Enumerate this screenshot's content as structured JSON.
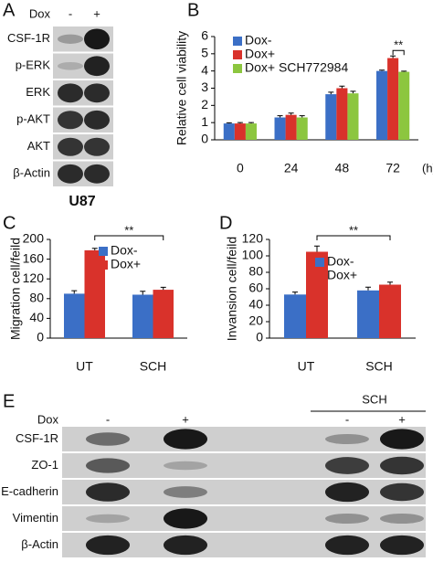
{
  "blot_a": {
    "panel_label": "A",
    "treatment_label": "Dox",
    "lanes": [
      "-",
      "+"
    ],
    "rows": [
      "CSF-1R",
      "p-ERK",
      "ERK",
      "p-AKT",
      "AKT",
      "β-Actin"
    ],
    "cell_line": "U87"
  },
  "chart_data": [
    {
      "type": "bar",
      "panel_label": "B",
      "ylabel": "Relative cell viability",
      "xlabel": "(h)",
      "categories": [
        "0",
        "24",
        "48",
        "72"
      ],
      "ylim": [
        0,
        6
      ],
      "yticks": [
        0,
        1,
        2,
        3,
        4,
        5,
        6
      ],
      "annotation": "**",
      "series": [
        {
          "name": "Dox-",
          "color": "#3b6fc6",
          "values": [
            0.95,
            1.3,
            2.65,
            4.0
          ],
          "errors": [
            0.04,
            0.1,
            0.12,
            0.05
          ]
        },
        {
          "name": "Dox+",
          "color": "#d9322b",
          "values": [
            0.95,
            1.45,
            3.0,
            4.75
          ],
          "errors": [
            0.05,
            0.1,
            0.12,
            0.12
          ]
        },
        {
          "name": "Dox+ SCH772984",
          "color": "#8cc63f",
          "values": [
            0.95,
            1.3,
            2.7,
            3.95
          ],
          "errors": [
            0.05,
            0.1,
            0.12,
            0.04
          ]
        }
      ]
    },
    {
      "type": "bar",
      "panel_label": "C",
      "ylabel": "Migration cell/feild",
      "categories": [
        "UT",
        "SCH"
      ],
      "ylim": [
        0,
        200
      ],
      "yticks": [
        0,
        40,
        80,
        120,
        160,
        200
      ],
      "annotation": "**",
      "series": [
        {
          "name": "Dox-",
          "color": "#3b6fc6",
          "values": [
            90,
            88
          ],
          "errors": [
            6,
            7
          ]
        },
        {
          "name": "Dox+",
          "color": "#d9322b",
          "values": [
            178,
            98
          ],
          "errors": [
            4,
            5
          ]
        }
      ]
    },
    {
      "type": "bar",
      "panel_label": "D",
      "ylabel": "Invansion cell/feild",
      "categories": [
        "UT",
        "SCH"
      ],
      "ylim": [
        0,
        120
      ],
      "yticks": [
        0,
        20,
        40,
        60,
        80,
        100,
        120
      ],
      "annotation": "**",
      "series": [
        {
          "name": "Dox-",
          "color": "#3b6fc6",
          "values": [
            53,
            58
          ],
          "errors": [
            3,
            4
          ]
        },
        {
          "name": "Dox+",
          "color": "#d9322b",
          "values": [
            105,
            65
          ],
          "errors": [
            7,
            3
          ]
        }
      ]
    }
  ],
  "blot_e": {
    "panel_label": "E",
    "treatment_label": "Dox",
    "group_label": "SCH",
    "lanes": [
      "-",
      "+",
      "-",
      "+"
    ],
    "rows": [
      "CSF-1R",
      "ZO-1",
      "E-cadherin",
      "Vimentin",
      "β-Actin"
    ]
  }
}
